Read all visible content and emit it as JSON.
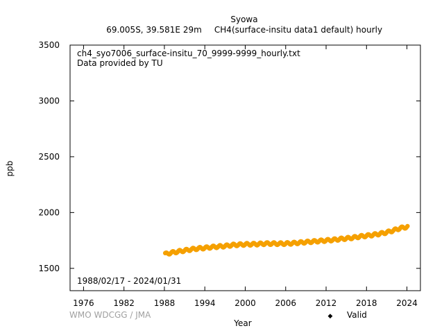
{
  "chart_data": {
    "type": "scatter",
    "title": "Syowa",
    "subtitle_location": "69.005S, 39.581E 29m",
    "subtitle_dataset": "CH4(surface-insitu data1 default) hourly",
    "xlabel": "Year",
    "ylabel": "ppb",
    "xlim": [
      1974,
      2026
    ],
    "ylim": [
      1300,
      3500
    ],
    "x_ticks": [
      1976,
      1982,
      1988,
      1994,
      2000,
      2006,
      2012,
      2018,
      2024
    ],
    "y_ticks": [
      1500,
      2000,
      2500,
      3000,
      3500
    ],
    "grid": false,
    "file_note": "ch4_syo7006_surface-insitu_70_9999-9999_hourly.txt",
    "provider_note": "Data provided by TU",
    "period_note": "1988/02/17 - 2024/01/31",
    "credit": "WMO WDCGG / JMA",
    "legend": {
      "position": "bottom-right",
      "marker": "◆"
    },
    "series": [
      {
        "name": "Valid",
        "color": "#f5a000",
        "seasonal_amplitude_ppb": 12,
        "x": [
          1988.13,
          1989,
          1990,
          1991,
          1992,
          1993,
          1994,
          1995,
          1996,
          1997,
          1998,
          1999,
          2000,
          2001,
          2002,
          2003,
          2004,
          2005,
          2006,
          2007,
          2008,
          2009,
          2010,
          2011,
          2012,
          2013,
          2014,
          2015,
          2016,
          2017,
          2018,
          2019,
          2020,
          2021,
          2022,
          2023,
          2024.08
        ],
        "y": [
          1628,
          1640,
          1650,
          1660,
          1670,
          1678,
          1683,
          1690,
          1695,
          1700,
          1708,
          1712,
          1715,
          1716,
          1718,
          1722,
          1722,
          1721,
          1722,
          1725,
          1730,
          1735,
          1740,
          1745,
          1750,
          1755,
          1762,
          1768,
          1775,
          1785,
          1792,
          1800,
          1810,
          1822,
          1840,
          1860,
          1872
        ]
      }
    ]
  }
}
